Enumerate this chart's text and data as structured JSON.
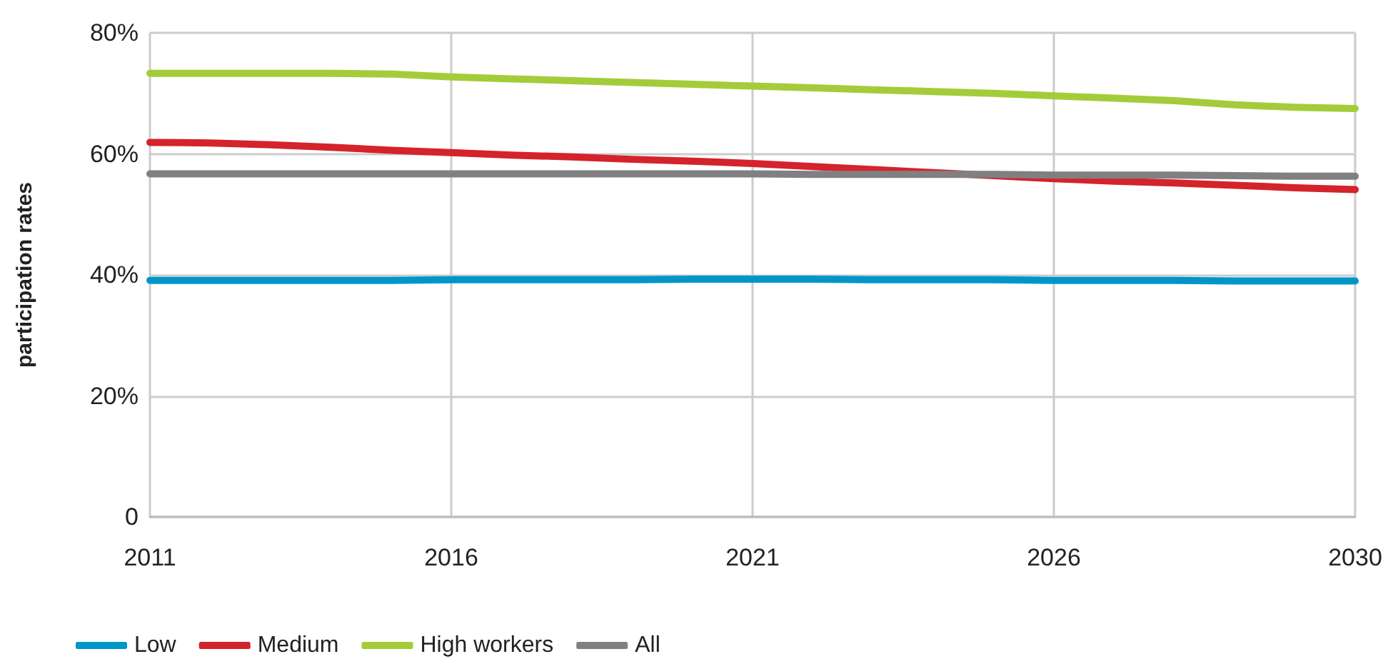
{
  "chart_data": {
    "type": "line",
    "ylabel": "participation rates",
    "categories": [
      "2011",
      null,
      null,
      null,
      null,
      "2016",
      null,
      null,
      null,
      null,
      "2021",
      null,
      null,
      null,
      null,
      "2026",
      null,
      null,
      null,
      null,
      "2030"
    ],
    "ylim": [
      0,
      80
    ],
    "yticks": [
      0,
      {
        "value": 20,
        "label": "20%"
      },
      {
        "value": 40,
        "label": "40%"
      },
      {
        "value": 60,
        "label": "60%"
      },
      {
        "value": 80,
        "label": "80%"
      }
    ],
    "grid": true,
    "legend": "bottom left",
    "marker": "none",
    "line_style": "solid",
    "series": [
      {
        "name": "Low",
        "color": "#0096c8",
        "values": [
          39.1,
          39.1,
          39.1,
          39.1,
          39.1,
          39.2,
          39.2,
          39.2,
          39.2,
          39.3,
          39.3,
          39.3,
          39.2,
          39.2,
          39.2,
          39.1,
          39.1,
          39.1,
          39.0,
          39.0,
          39.0
        ]
      },
      {
        "name": "Medium",
        "color": "#d4232b",
        "values": [
          61.9,
          61.8,
          61.5,
          61.1,
          60.6,
          60.2,
          59.8,
          59.5,
          59.1,
          58.8,
          58.4,
          57.9,
          57.4,
          56.9,
          56.4,
          55.9,
          55.5,
          55.2,
          54.8,
          54.4,
          54.1
        ]
      },
      {
        "name": "High workers",
        "color": "#a4cc3a",
        "values": [
          73.3,
          73.3,
          73.3,
          73.3,
          73.2,
          72.7,
          72.4,
          72.1,
          71.8,
          71.5,
          71.2,
          70.9,
          70.6,
          70.3,
          70.0,
          69.6,
          69.2,
          68.8,
          68.1,
          67.7,
          67.5
        ]
      },
      {
        "name": "All",
        "color": "#808083",
        "values": [
          56.7,
          56.7,
          56.7,
          56.7,
          56.7,
          56.7,
          56.7,
          56.7,
          56.7,
          56.7,
          56.7,
          56.6,
          56.6,
          56.6,
          56.6,
          56.5,
          56.5,
          56.5,
          56.4,
          56.3,
          56.3
        ]
      }
    ]
  }
}
